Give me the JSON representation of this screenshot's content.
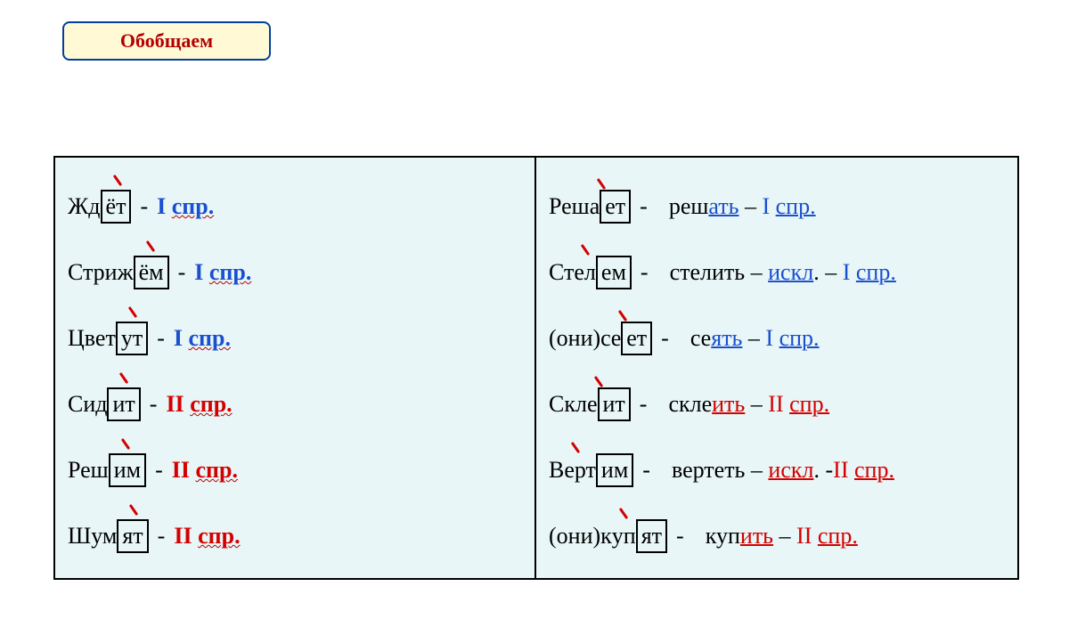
{
  "badge": "Обобщаем",
  "colors": {
    "blue": "#1a4fcf",
    "red": "#d40000",
    "box_bg": "#e8f6f7",
    "badge_bg": "#fff9d5",
    "badge_border": "#003e9f"
  },
  "left": [
    {
      "pre": "Жд",
      "box": "ёт",
      "post": "",
      "tag": "I спр.",
      "tag_color": "blue"
    },
    {
      "pre": "Стриж",
      "box": "ём",
      "post": "",
      "tag": "I спр.",
      "tag_color": "blue"
    },
    {
      "pre": "Цвет",
      "box": "ут",
      "post": "",
      "tag": "I спр.",
      "tag_color": "blue"
    },
    {
      "pre": "Сид",
      "box": "ит",
      "post": "",
      "tag": "II спр.",
      "tag_color": "red"
    },
    {
      "pre": "Реш",
      "box": "им",
      "post": "",
      "tag": "II спр.",
      "tag_color": "red"
    },
    {
      "pre": "Шум",
      "box": "ят",
      "post": "",
      "tag": "II спр.",
      "tag_color": "red"
    }
  ],
  "right": [
    {
      "prefix": "",
      "stress_pre": "Реш",
      "stress_letter": "а",
      "mid": "",
      "box": "ет",
      "post": "",
      "ans_pre": "реш",
      "ans_u1": "ать",
      "ans_mid": " – ",
      "ans_tag": "I спр.",
      "ans_col": "blue"
    },
    {
      "prefix": "",
      "stress_pre": "Ст",
      "stress_letter": "е",
      "mid": "л",
      "box": "ем",
      "post": "",
      "ans_pre": "стелить – ",
      "ans_u1": "искл",
      "ans_mid": ". – ",
      "ans_tag": "I спр.",
      "ans_col": "blue"
    },
    {
      "prefix": "(они) ",
      "stress_pre": "с",
      "stress_letter": "е",
      "mid": "",
      "box": "ет",
      "post": "",
      "ans_pre": "се",
      "ans_u1": "ять",
      "ans_mid": " – ",
      "ans_tag": "I спр.",
      "ans_col": "blue"
    },
    {
      "prefix": "",
      "stress_pre": "Скл",
      "stress_letter": "е",
      "mid": "",
      "box": "ит",
      "post": "",
      "ans_pre": "скле",
      "ans_u1": "ить",
      "ans_mid": " – ",
      "ans_tag": "II спр.",
      "ans_col": "red"
    },
    {
      "prefix": "",
      "stress_pre": "В",
      "stress_letter": "е",
      "mid": "рт",
      "box": "им",
      "post": "",
      "ans_pre": "вертеть – ",
      "ans_u1": "искл",
      "ans_mid": ". -",
      "ans_tag": "II спр.",
      "ans_col": "red"
    },
    {
      "prefix": "(они) ",
      "stress_pre": "к",
      "stress_letter": "у",
      "mid": "п",
      "box": "ят",
      "post": "",
      "ans_pre": "куп",
      "ans_u1": "ить",
      "ans_mid": " – ",
      "ans_tag": "II спр.",
      "ans_col": "red"
    }
  ]
}
